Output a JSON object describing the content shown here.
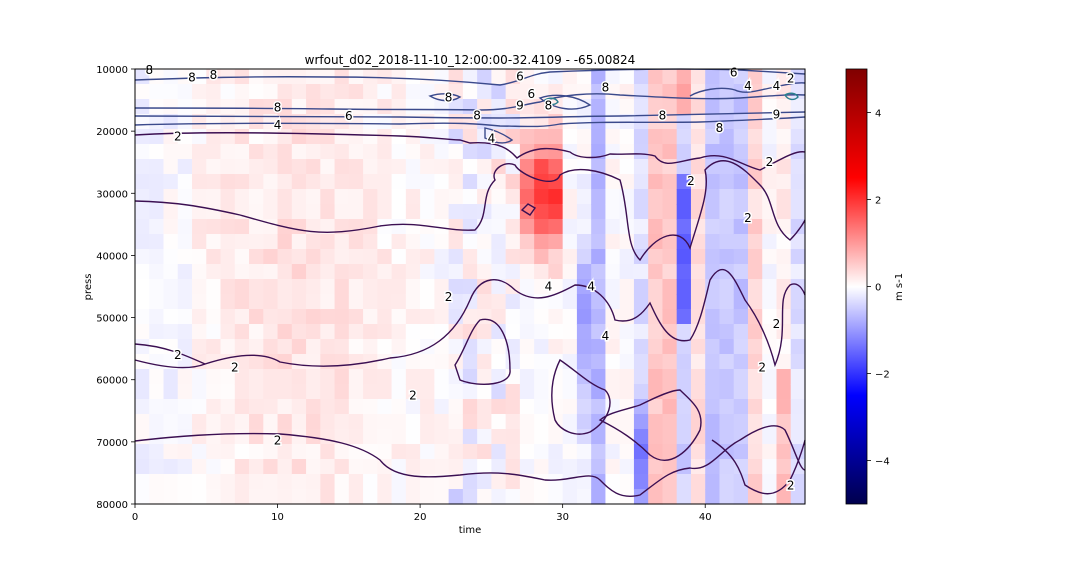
{
  "chart_data": {
    "type": "heatmap",
    "title": "wrfout_d02_2018-11-10_12:00:00-32.4109 - -65.00824",
    "xlabel": "time",
    "ylabel": "press",
    "xlim": [
      0,
      47
    ],
    "ylim": [
      10000,
      80000
    ],
    "y_inverted": false,
    "x_ticks": [
      0,
      10,
      20,
      30,
      40
    ],
    "y_ticks": [
      10000,
      20000,
      30000,
      40000,
      50000,
      60000,
      70000,
      80000
    ],
    "colorbar": {
      "label": "m s-1",
      "range": [
        -5,
        5
      ],
      "ticks": [
        -4,
        -2,
        0,
        2,
        4
      ],
      "colormap": "seismic",
      "colors": [
        "#00004d",
        "#0000ff",
        "#ffffff",
        "#ff0000",
        "#800000"
      ]
    },
    "contour_colors": {
      "low": "#3b0f52",
      "mid": "#3b4a8c",
      "high": "#2a7f8e"
    },
    "contour_labels": [
      {
        "text": "2",
        "x": 3,
        "y": 20900
      },
      {
        "text": "4",
        "x": 10,
        "y": 19000
      },
      {
        "text": "6",
        "x": 15,
        "y": 17600
      },
      {
        "text": "8",
        "x": 10,
        "y": 16200
      },
      {
        "text": "8",
        "x": 4,
        "y": 11400
      },
      {
        "text": "8",
        "x": 5.5,
        "y": 11000
      },
      {
        "text": "8",
        "x": 1,
        "y": 10200
      },
      {
        "text": "9",
        "x": 27,
        "y": 15900
      },
      {
        "text": "8",
        "x": 29,
        "y": 15900
      },
      {
        "text": "6",
        "x": 27.8,
        "y": 14000
      },
      {
        "text": "6",
        "x": 27,
        "y": 11200
      },
      {
        "text": "8",
        "x": 22,
        "y": 14600
      },
      {
        "text": "8",
        "x": 24,
        "y": 17500
      },
      {
        "text": "4",
        "x": 25,
        "y": 21200
      },
      {
        "text": "8",
        "x": 33,
        "y": 13000
      },
      {
        "text": "6",
        "x": 42,
        "y": 10600
      },
      {
        "text": "4",
        "x": 43,
        "y": 12700
      },
      {
        "text": "4",
        "x": 45,
        "y": 12700
      },
      {
        "text": "2",
        "x": 46,
        "y": 11500
      },
      {
        "text": "8",
        "x": 37,
        "y": 17500
      },
      {
        "text": "8",
        "x": 41,
        "y": 19500
      },
      {
        "text": "9",
        "x": 45,
        "y": 17300
      },
      {
        "text": "2",
        "x": 39,
        "y": 28000
      },
      {
        "text": "2",
        "x": 44.5,
        "y": 25000
      },
      {
        "text": "2",
        "x": 43,
        "y": 34000
      },
      {
        "text": "2",
        "x": 22,
        "y": 46700
      },
      {
        "text": "4",
        "x": 29,
        "y": 45000
      },
      {
        "text": "4",
        "x": 32,
        "y": 45000
      },
      {
        "text": "4",
        "x": 33,
        "y": 53000
      },
      {
        "text": "2",
        "x": 3,
        "y": 56000
      },
      {
        "text": "2",
        "x": 7,
        "y": 58000
      },
      {
        "text": "2",
        "x": 19.5,
        "y": 62500
      },
      {
        "text": "2",
        "x": 10,
        "y": 69800
      },
      {
        "text": "2",
        "x": 44,
        "y": 58000
      },
      {
        "text": "2",
        "x": 45,
        "y": 51000
      },
      {
        "text": "2",
        "x": 46,
        "y": 77000
      }
    ]
  }
}
